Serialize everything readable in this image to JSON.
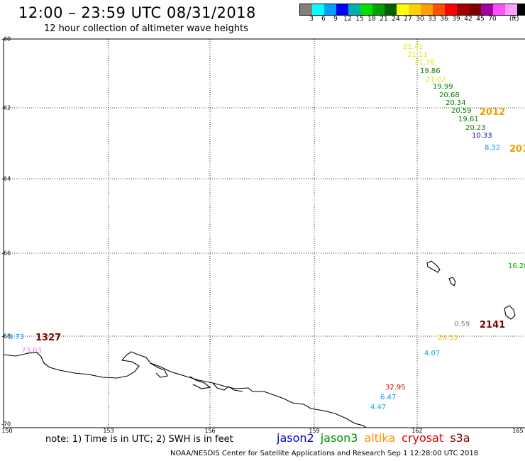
{
  "header": {
    "title": "12:00 – 23:59 UTC 08/31/2018",
    "subtitle": "12 hour collection of altimeter wave heights"
  },
  "legend": {
    "colors": [
      "#808080",
      "#00ffff",
      "#00a0ff",
      "#0000ff",
      "#00b0b0",
      "#00e000",
      "#00a000",
      "#006000",
      "#ffff00",
      "#ffd000",
      "#ffa000",
      "#ff5000",
      "#ff0000",
      "#a00000",
      "#800000",
      "#a000a0",
      "#ff50ff",
      "#ffa0ff",
      "#000000"
    ],
    "ticks": [
      "3",
      "6",
      "9",
      "12",
      "15",
      "18",
      "21",
      "24",
      "27",
      "30",
      "33",
      "36",
      "39",
      "42",
      "45",
      "70"
    ],
    "unit": "(ft)"
  },
  "map": {
    "lat_labels": [
      "-60",
      "-62",
      "-64",
      "-66",
      "-68",
      "-70"
    ],
    "lon_labels": [
      "150",
      "153",
      "156",
      "159",
      "162",
      "165"
    ],
    "observations": [
      {
        "text": "21.41",
        "color": "#e6e600"
      },
      {
        "text": "21.11",
        "color": "#e6e600"
      },
      {
        "text": "21.78",
        "color": "#e6e600"
      },
      {
        "text": "19.86",
        "color": "#008000"
      },
      {
        "text": "21.02",
        "color": "#e6e600"
      },
      {
        "text": "19.99",
        "color": "#008000"
      },
      {
        "text": "20.68",
        "color": "#008000"
      },
      {
        "text": "20.34",
        "color": "#008000"
      },
      {
        "text": "20.59",
        "color": "#008000"
      },
      {
        "text": "2012",
        "color": "#f0a000"
      },
      {
        "text": "19.61",
        "color": "#008000"
      },
      {
        "text": "20.23",
        "color": "#008000"
      },
      {
        "text": "10.33",
        "color": "#0000cc"
      },
      {
        "text": "8.32",
        "color": "#0099ee"
      },
      {
        "text": "201",
        "color": "#f0a000"
      },
      {
        "text": "16.28",
        "color": "#00b000"
      },
      {
        "text": "0.59",
        "color": "#808080"
      },
      {
        "text": "2141",
        "color": "#800000"
      },
      {
        "text": "24.53",
        "color": "#f0c000"
      },
      {
        "text": "4.07",
        "color": "#00b0ee"
      },
      {
        "text": "32.95",
        "color": "#dd0000"
      },
      {
        "text": "6.47",
        "color": "#0099ee"
      },
      {
        "text": "4.47",
        "color": "#00b0ee"
      },
      {
        "text": "8.73",
        "color": "#0099ee"
      },
      {
        "text": "1327",
        "color": "#800000"
      },
      {
        "text": "73.03",
        "color": "#ff70ff"
      }
    ]
  },
  "footer": {
    "note": "note: 1) Time is in UTC; 2) SWH is in feet",
    "satellites": [
      {
        "name": "jason2",
        "color": "#0000cc"
      },
      {
        "name": "jason3",
        "color": "#009000"
      },
      {
        "name": "altika",
        "color": "#ff9000"
      },
      {
        "name": "cryosat",
        "color": "#dd0000"
      },
      {
        "name": "s3a",
        "color": "#800000"
      }
    ],
    "credit": "NOAA/NESDIS Center for Satellite Applications and Research   Sep  1 12:28:00 UTC 2018"
  }
}
